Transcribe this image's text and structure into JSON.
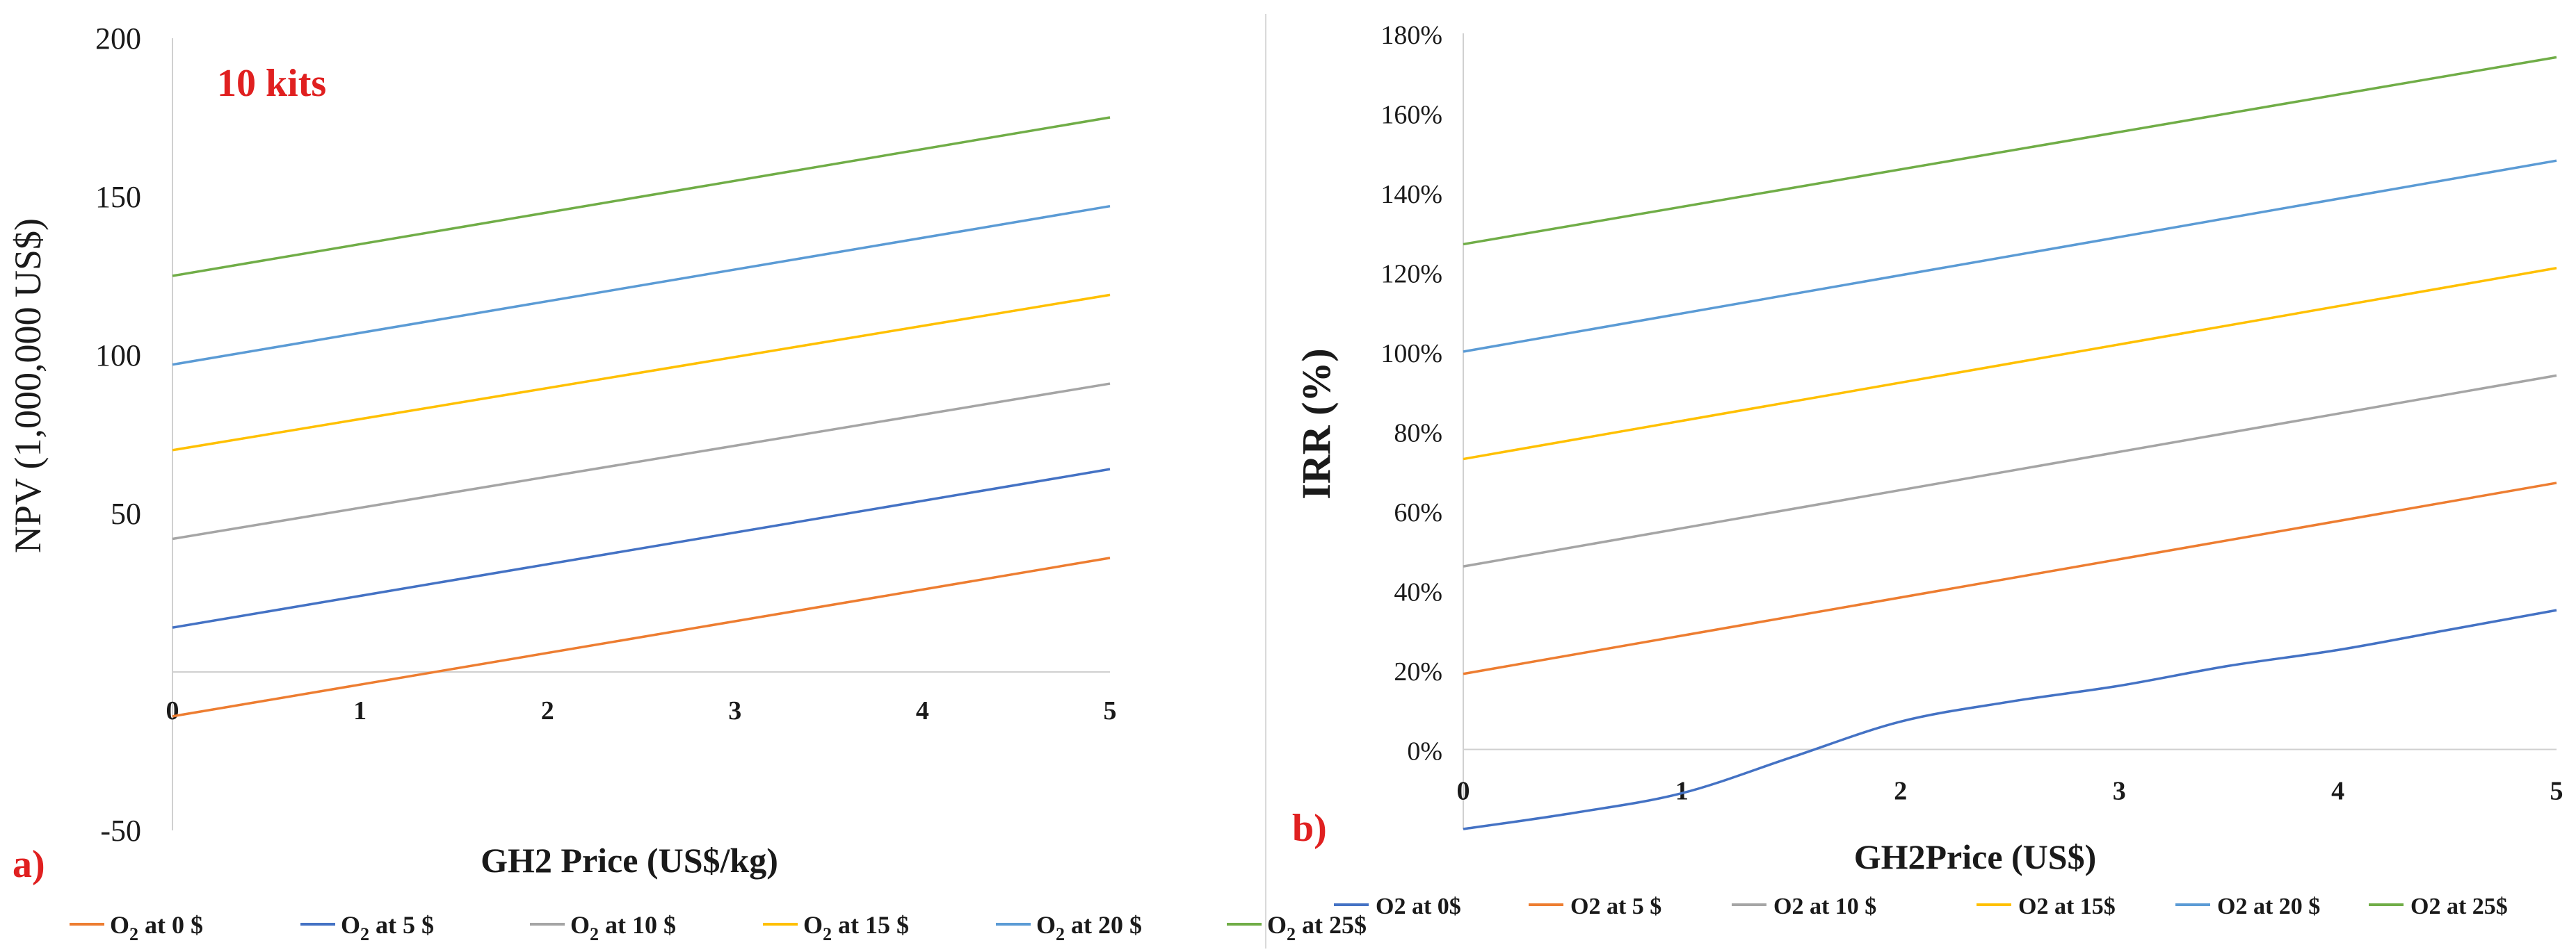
{
  "chart_data": [
    {
      "type": "line",
      "panel_label": "a)",
      "annotation": "10 kits",
      "xlabel": "GH2 Price (US$/kg)",
      "ylabel": "NPV (1,000,000 US$)",
      "xlim": [
        0,
        5
      ],
      "ylim": [
        -50,
        200
      ],
      "x_ticks": [
        "0",
        "1",
        "2",
        "3",
        "4",
        "5"
      ],
      "y_ticks": [
        "200",
        "150",
        "100",
        "50",
        "-50"
      ],
      "x": [
        0,
        5
      ],
      "series": [
        {
          "name": "O2 at 0 $",
          "values": [
            -14,
            36
          ],
          "color": "#ed7d31"
        },
        {
          "name": "O2 at 5 $",
          "values": [
            14,
            64
          ],
          "color": "#4472c4"
        },
        {
          "name": "O2 at 10 $",
          "values": [
            42,
            91
          ],
          "color": "#a5a5a5"
        },
        {
          "name": "O2 at 15 $",
          "values": [
            70,
            119
          ],
          "color": "#ffc000"
        },
        {
          "name": "O2 at 20 $",
          "values": [
            97,
            147
          ],
          "color": "#5b9bd5"
        },
        {
          "name": "O2 at 25$",
          "values": [
            125,
            175
          ],
          "color": "#70ad47"
        }
      ],
      "legend": [
        {
          "base": "O",
          "sub": "2",
          "rest": " at 0 $"
        },
        {
          "base": "O",
          "sub": "2",
          "rest": " at 5 $"
        },
        {
          "base": "O",
          "sub": "2",
          "rest": " at 10 $"
        },
        {
          "base": "O",
          "sub": "2",
          "rest": " at 15 $"
        },
        {
          "base": "O",
          "sub": "2",
          "rest": " at 20 $"
        },
        {
          "base": "O",
          "sub": "2",
          "rest": " at 25$"
        }
      ]
    },
    {
      "type": "line",
      "panel_label": "b)",
      "xlabel": "GH2Price (US$)",
      "ylabel": "IRR (%)",
      "xlim": [
        0,
        5
      ],
      "ylim": [
        -20,
        180
      ],
      "x_ticks": [
        "0",
        "1",
        "2",
        "3",
        "4",
        "5"
      ],
      "y_ticks": [
        "180%",
        "160%",
        "140%",
        "120%",
        "100%",
        "80%",
        "60%",
        "40%",
        "20%",
        "0%"
      ],
      "series": [
        {
          "name": "O2 at 0$",
          "color": "#4472c4",
          "x": [
            0,
            0.5,
            1,
            1.5,
            2,
            2.5,
            3,
            3.5,
            4,
            4.5,
            5
          ],
          "values": [
            -20,
            -16,
            -11,
            -2,
            7,
            12,
            16,
            21,
            25,
            30,
            35
          ]
        },
        {
          "name": "O2 at 5 $",
          "color": "#ed7d31",
          "x": [
            0,
            5
          ],
          "values": [
            19,
            67
          ]
        },
        {
          "name": "O2 at 10 $",
          "color": "#a5a5a5",
          "x": [
            0,
            5
          ],
          "values": [
            46,
            94
          ]
        },
        {
          "name": "O2 at 15$",
          "color": "#ffc000",
          "x": [
            0,
            5
          ],
          "values": [
            73,
            121
          ]
        },
        {
          "name": "O2 at 20 $",
          "color": "#5b9bd5",
          "x": [
            0,
            5
          ],
          "values": [
            100,
            148
          ]
        },
        {
          "name": "O2 at 25$",
          "color": "#70ad47",
          "x": [
            0,
            5
          ],
          "values": [
            127,
            174
          ]
        }
      ]
    }
  ]
}
